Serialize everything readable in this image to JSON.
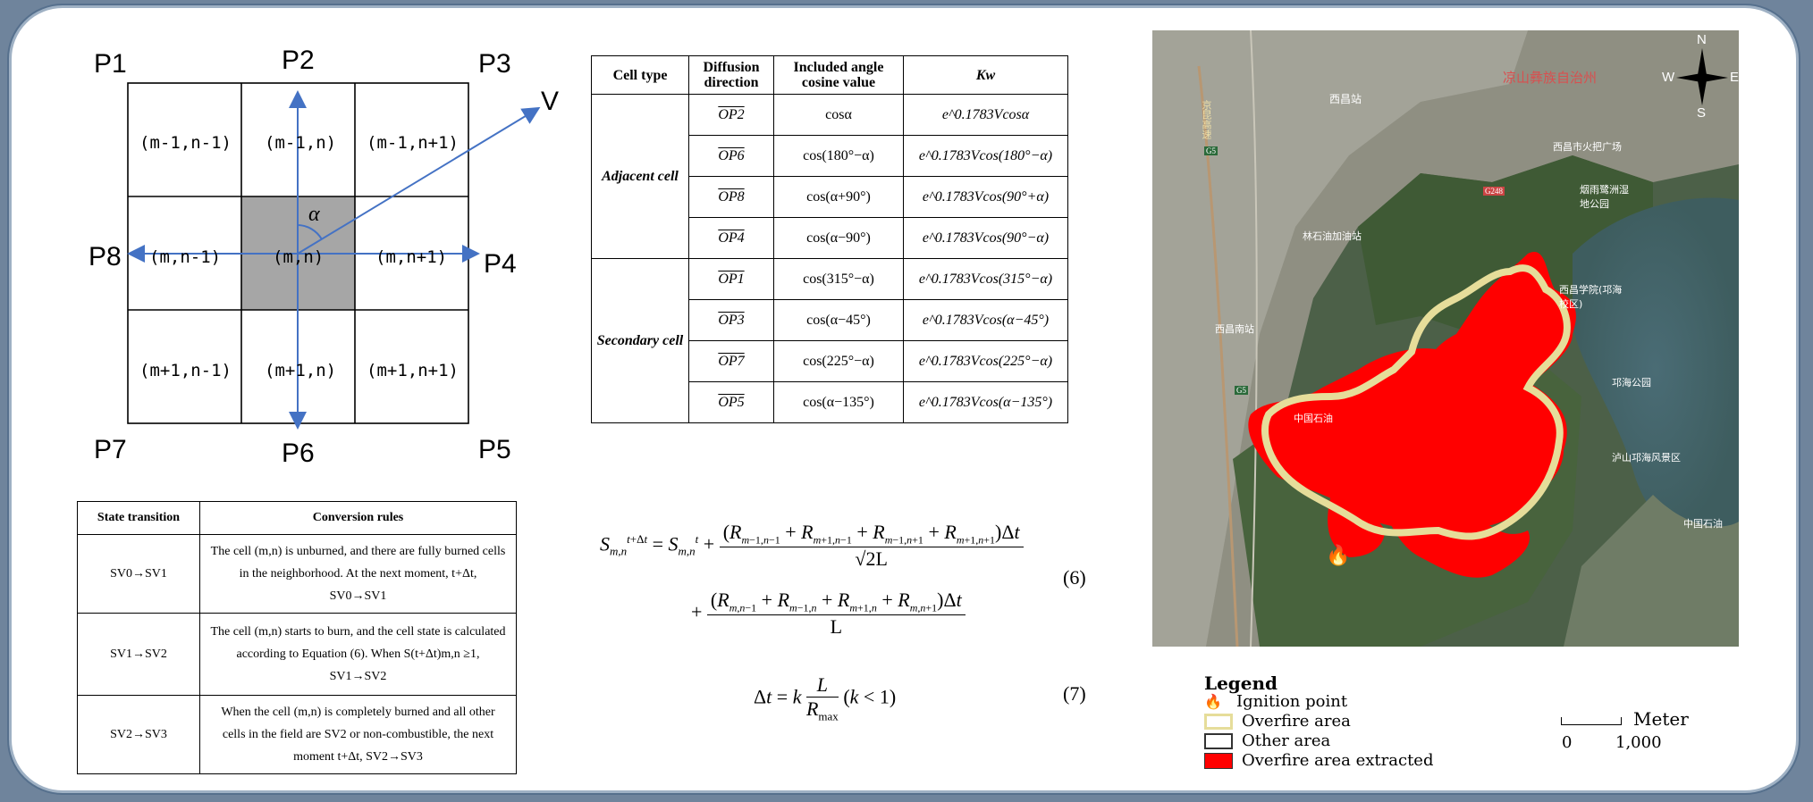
{
  "grid": {
    "points": {
      "p1": "P1",
      "p2": "P2",
      "p3": "P3",
      "p4": "P4",
      "p5": "P5",
      "p6": "P6",
      "p7": "P7",
      "p8": "P8"
    },
    "v_label": "V",
    "alpha_label": "α",
    "cells": [
      "(m-1,n-1)",
      "(m-1,n)",
      "(m-1,n+1)",
      "(m,n-1)",
      "(m,n)",
      "(m,n+1)",
      "(m+1,n-1)",
      "(m+1,n)",
      "(m+1,n+1)"
    ]
  },
  "kw_table": {
    "headers": [
      "Cell type",
      "Diffusion direction",
      "Included angle cosine value",
      "Kw"
    ],
    "groups": [
      "Adjacent cell",
      "Secondary cell"
    ],
    "rows": [
      {
        "dir": "OP2",
        "cos": "cosα",
        "kw": "e^0.1783Vcosα"
      },
      {
        "dir": "OP6",
        "cos": "cos(180°−α)",
        "kw": "e^0.1783Vcos(180°−α)"
      },
      {
        "dir": "OP8",
        "cos": "cos(α+90°)",
        "kw": "e^0.1783Vcos(90°+α)"
      },
      {
        "dir": "OP4",
        "cos": "cos(α−90°)",
        "kw": "e^0.1783Vcos(90°−α)"
      },
      {
        "dir": "OP1",
        "cos": "cos(315°−α)",
        "kw": "e^0.1783Vcos(315°−α)"
      },
      {
        "dir": "OP3",
        "cos": "cos(α−45°)",
        "kw": "e^0.1783Vcos(α−45°)"
      },
      {
        "dir": "OP7",
        "cos": "cos(225°−α)",
        "kw": "e^0.1783Vcos(225°−α)"
      },
      {
        "dir": "OP5",
        "cos": "cos(α−135°)",
        "kw": "e^0.1783Vcos(α−135°)"
      }
    ]
  },
  "state_table": {
    "headers": [
      "State transition",
      "Conversion rules"
    ],
    "rows": [
      {
        "state": "SV0→SV1",
        "rule": "The cell (m,n) is unburned, and there are fully burned cells in the neighborhood. At the next moment, t+Δt, SV0→SV1"
      },
      {
        "state": "SV1→SV2",
        "rule": "The cell (m,n) starts to burn, and the cell state is calculated according to Equation (6). When S(t+Δt)m,n ≥1, SV1→SV2"
      },
      {
        "state": "SV2→SV3",
        "rule": "When the cell (m,n) is completely burned and all other cells in the field are SV2 or non-combustible, the next moment t+Δt, SV2→SV3"
      }
    ]
  },
  "equations": {
    "eq6_number": "(6)",
    "eq7_number": "(7)",
    "eq6_denominator_1": "√2L",
    "eq6_denominator_2": "L",
    "eq7_text": "Δt = k L/Rmax (k<1)"
  },
  "map": {
    "places": [
      "西昌站",
      "凉山彝族自治州",
      "西昌市火把广场",
      "烟雨鹭洲湿地公园",
      "林石油加油站",
      "西昌学院(邛海校区)",
      "西昌南站",
      "邛海公园",
      "中国石油",
      "泸山邛海风景区",
      "中国石油"
    ],
    "road_labels": [
      "G5",
      "G248",
      "G5",
      "京昆高速"
    ],
    "compass": {
      "n": "N",
      "s": "S",
      "e": "E",
      "w": "W"
    },
    "colors": {
      "overfire_line": "#e6dd9a",
      "extracted": "#ff0000"
    }
  },
  "legend": {
    "title": "Legend",
    "items": [
      "Ignition point",
      "Overfire area",
      "Other area",
      "Overfire area extracted"
    ],
    "scale_unit": "Meter",
    "scale_0": "0",
    "scale_1000": "1,000"
  }
}
